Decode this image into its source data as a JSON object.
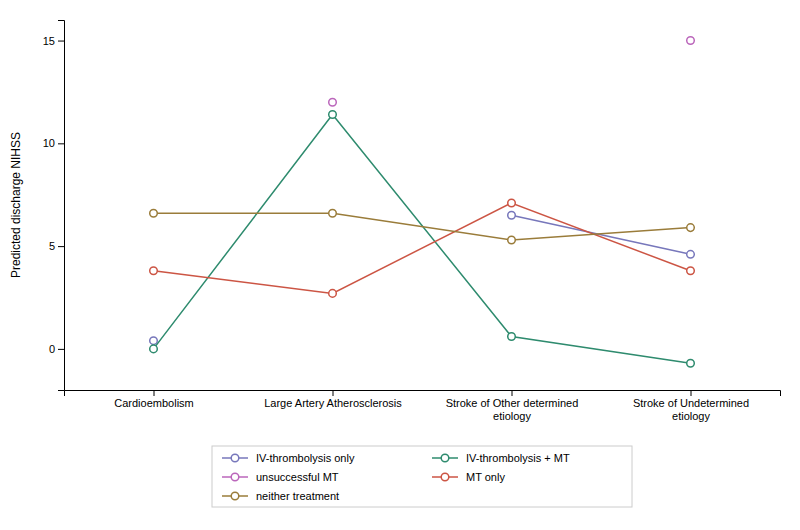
{
  "chart_data": {
    "type": "line",
    "categories": [
      "Cardioembolism",
      "Large Artery Atherosclerosis",
      "Stroke of Other determined\netiology",
      "Stroke of Undetermined\netiology"
    ],
    "series": [
      {
        "name": "IV-thrombolysis only",
        "color": "#7777bb",
        "values": [
          0.4,
          null,
          6.5,
          4.6
        ]
      },
      {
        "name": "IV-thrombolysis + MT",
        "color": "#2e8b6e",
        "values": [
          0.0,
          11.4,
          0.6,
          -0.7
        ]
      },
      {
        "name": "unsuccessful MT",
        "color": "#bb66bb",
        "values": [
          null,
          12.0,
          null,
          15.0
        ]
      },
      {
        "name": "MT only",
        "color": "#cc5544",
        "values": [
          3.8,
          2.7,
          7.1,
          3.8
        ]
      },
      {
        "name": "neither treatment",
        "color": "#9a7c3a",
        "values": [
          6.6,
          6.6,
          5.3,
          5.9
        ]
      }
    ],
    "ylabel": "Predicted discharge NIHSS",
    "ylim": [
      -2,
      16
    ],
    "yticks": [
      0,
      5,
      10,
      15
    ],
    "grid": false,
    "legend": "bottom",
    "marker": "circle"
  }
}
